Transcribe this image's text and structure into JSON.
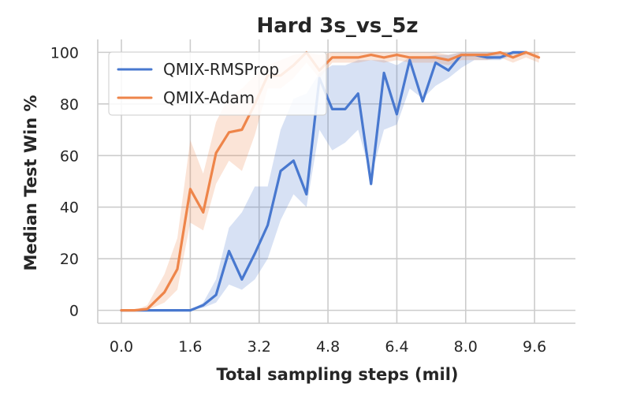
{
  "chart_data": {
    "type": "line",
    "title": "Hard 3s_vs_5z",
    "xlabel": "Total sampling steps (mil)",
    "ylabel": "Median Test Win %",
    "xlim": [
      -0.55,
      10.55
    ],
    "ylim": [
      -5,
      105
    ],
    "xticks": [
      0.0,
      1.6,
      3.2,
      4.8,
      6.4,
      8.0,
      9.6
    ],
    "xtick_labels": [
      "0.0",
      "1.6",
      "3.2",
      "4.8",
      "6.4",
      "8.0",
      "9.6"
    ],
    "yticks": [
      0,
      20,
      40,
      60,
      80,
      100
    ],
    "ytick_labels": [
      "0",
      "20",
      "40",
      "60",
      "80",
      "100"
    ],
    "grid": true,
    "legend_position": "top-left",
    "series": [
      {
        "name": "QMIX-RMSProp",
        "color": "#4878cf",
        "x": [
          0.0,
          0.3,
          0.6,
          1.0,
          1.3,
          1.6,
          1.9,
          2.2,
          2.5,
          2.8,
          3.1,
          3.4,
          3.7,
          4.0,
          4.3,
          4.6,
          4.9,
          5.2,
          5.5,
          5.8,
          6.1,
          6.4,
          6.7,
          7.0,
          7.3,
          7.6,
          7.9,
          8.2,
          8.5,
          8.8,
          9.1,
          9.4
        ],
        "y": [
          0,
          0,
          0,
          0,
          0,
          0,
          2,
          6,
          23,
          12,
          22,
          33,
          54,
          58,
          45,
          90,
          78,
          78,
          84,
          49,
          92,
          76,
          97,
          81,
          96,
          93,
          99,
          99,
          98,
          98,
          100,
          100
        ],
        "lower": [
          0,
          0,
          0,
          0,
          0,
          0,
          1,
          3,
          10,
          8,
          12,
          20,
          35,
          45,
          40,
          70,
          62,
          65,
          70,
          52,
          70,
          72,
          86,
          82,
          87,
          90,
          94,
          97,
          97,
          97,
          99,
          99
        ],
        "upper": [
          0,
          0,
          0,
          0,
          0,
          0,
          3,
          12,
          32,
          38,
          48,
          48,
          70,
          82,
          84,
          92,
          95,
          95,
          97,
          97,
          97,
          95,
          98,
          98,
          99,
          99,
          100,
          100,
          100,
          100,
          100,
          100
        ]
      },
      {
        "name": "QMIX-Adam",
        "color": "#ee854a",
        "x": [
          0.0,
          0.3,
          0.6,
          1.0,
          1.3,
          1.6,
          1.9,
          2.2,
          2.5,
          2.8,
          3.1,
          3.4,
          3.7,
          4.0,
          4.3,
          4.6,
          4.9,
          5.2,
          5.5,
          5.8,
          6.1,
          6.4,
          6.7,
          7.0,
          7.3,
          7.6,
          7.9,
          8.2,
          8.5,
          8.8,
          9.1,
          9.4,
          9.7
        ],
        "y": [
          0,
          0,
          0.5,
          7,
          16,
          47,
          38,
          61,
          69,
          70,
          80,
          91,
          91,
          95,
          100,
          93,
          98,
          98,
          98,
          99,
          98,
          99,
          98,
          98,
          98,
          97,
          99,
          99,
          99,
          100,
          98,
          100,
          98
        ],
        "lower": [
          0,
          0,
          0,
          3,
          8,
          34,
          31,
          49,
          58,
          54,
          68,
          86,
          86,
          90,
          96,
          90,
          96,
          96,
          96,
          97,
          96,
          97,
          96,
          96,
          96,
          95,
          97,
          97,
          97,
          98,
          96,
          98,
          96
        ],
        "upper": [
          0,
          0,
          2,
          14,
          28,
          66,
          53,
          73,
          83,
          86,
          91,
          95,
          97,
          99,
          100,
          99,
          100,
          100,
          100,
          100,
          100,
          100,
          100,
          100,
          100,
          99,
          100,
          100,
          100,
          100,
          100,
          100,
          100
        ]
      }
    ]
  }
}
